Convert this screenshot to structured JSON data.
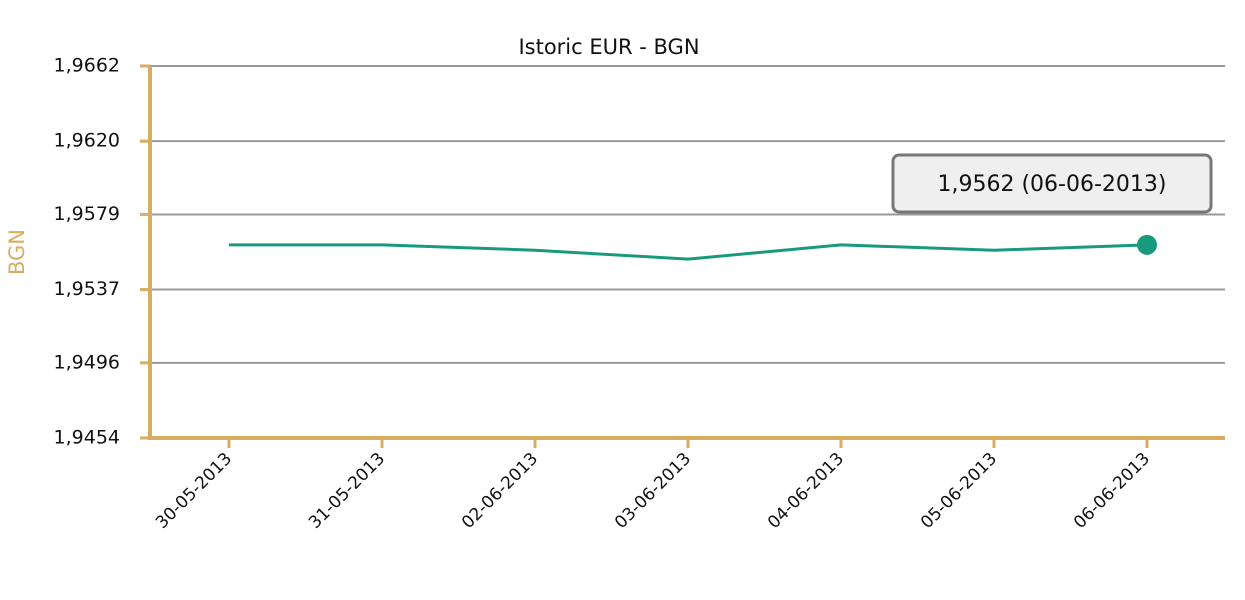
{
  "chart_data": {
    "type": "line",
    "title": "Istoric EUR - BGN",
    "y_label": "BGN",
    "categories": [
      "30-05-2013",
      "31-05-2013",
      "02-06-2013",
      "03-06-2013",
      "04-06-2013",
      "05-06-2013",
      "06-06-2013"
    ],
    "series": [
      {
        "name": "EUR - BGN",
        "color": "#1a9a7c",
        "values": [
          1.9562,
          1.9562,
          1.9559,
          1.9554,
          1.9562,
          1.9559,
          1.9562
        ]
      }
    ],
    "ylim": [
      1.9454,
      1.9662
    ],
    "yticks": [
      {
        "value": 1.9454,
        "label": "1,9454"
      },
      {
        "value": 1.9496,
        "label": "1,9496"
      },
      {
        "value": 1.9537,
        "label": "1,9537"
      },
      {
        "value": 1.9579,
        "label": "1,9579"
      },
      {
        "value": 1.962,
        "label": "1,9620"
      },
      {
        "value": 1.9662,
        "label": "1,9662"
      }
    ],
    "grid": true,
    "axis_color": "#d8ad62",
    "tooltip": "1,9562 (06-06-2013)"
  }
}
